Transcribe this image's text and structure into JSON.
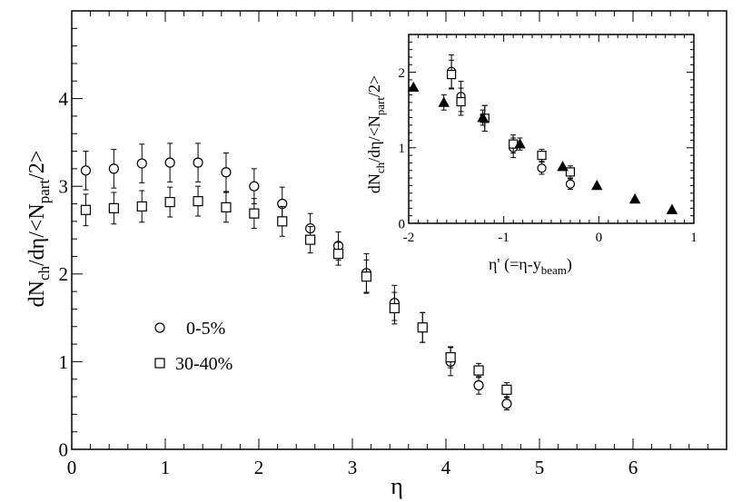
{
  "chart_data": [
    {
      "type": "scatter",
      "title": "",
      "xlabel": "η",
      "ylabel": "dN_ch/dη/<N_part/2>",
      "xlim": [
        0,
        7
      ],
      "ylim": [
        0,
        5
      ],
      "x_ticks": [
        0,
        1,
        2,
        3,
        4,
        5,
        6
      ],
      "y_ticks": [
        0,
        1,
        2,
        3,
        4
      ],
      "grid": false,
      "legend_position": "lower-left",
      "series": [
        {
          "name": "0-5%",
          "marker": "open-circle",
          "x": [
            0.15,
            0.45,
            0.75,
            1.05,
            1.35,
            1.65,
            1.95,
            2.25,
            2.55,
            2.85,
            3.15,
            3.45,
            3.75,
            4.05,
            4.35,
            4.65
          ],
          "y": [
            3.18,
            3.2,
            3.26,
            3.27,
            3.27,
            3.16,
            3.0,
            2.8,
            2.52,
            2.32,
            2.01,
            1.67,
            1.39,
            1.0,
            0.73,
            0.52
          ],
          "err": [
            0.22,
            0.22,
            0.22,
            0.22,
            0.22,
            0.22,
            0.2,
            0.19,
            0.17,
            0.16,
            0.22,
            0.2,
            0.17,
            0.16,
            0.1,
            0.07
          ]
        },
        {
          "name": "30-40%",
          "marker": "open-square",
          "x": [
            0.15,
            0.45,
            0.75,
            1.05,
            1.35,
            1.65,
            1.95,
            2.25,
            2.55,
            2.85,
            3.15,
            3.45,
            3.75,
            4.05,
            4.35,
            4.65
          ],
          "y": [
            2.73,
            2.75,
            2.77,
            2.82,
            2.83,
            2.76,
            2.69,
            2.6,
            2.39,
            2.23,
            1.97,
            1.61,
            1.39,
            1.05,
            0.9,
            0.68
          ],
          "err": [
            0.18,
            0.18,
            0.18,
            0.17,
            0.17,
            0.17,
            0.17,
            0.17,
            0.15,
            0.13,
            0.19,
            0.18,
            0.17,
            0.12,
            0.08,
            0.08
          ]
        }
      ]
    },
    {
      "type": "scatter",
      "title": "",
      "xlabel": "η' (=η-y_beam)",
      "ylabel": "dN_ch/dη/<N_part/2>",
      "xlim": [
        -2,
        1
      ],
      "ylim": [
        0,
        2.5
      ],
      "x_ticks": [
        -2,
        -1,
        0,
        1
      ],
      "y_ticks": [
        0,
        1,
        2
      ],
      "grid": false,
      "series": [
        {
          "name": "0-5%",
          "marker": "open-circle",
          "x": [
            -1.55,
            -1.45,
            -1.2,
            -0.9,
            -0.6,
            -0.3
          ],
          "y": [
            2.01,
            1.68,
            1.39,
            1.0,
            0.73,
            0.52
          ],
          "err": [
            0.22,
            0.2,
            0.17,
            0.13,
            0.08,
            0.07
          ]
        },
        {
          "name": "30-40%",
          "marker": "open-square",
          "x": [
            -1.55,
            -1.45,
            -1.2,
            -0.9,
            -0.6,
            -0.3
          ],
          "y": [
            1.97,
            1.61,
            1.39,
            1.05,
            0.9,
            0.68
          ],
          "err": [
            0.19,
            0.18,
            0.17,
            0.12,
            0.08,
            0.08
          ]
        },
        {
          "name": "",
          "marker": "filled-triangle",
          "x": [
            -1.95,
            -1.63,
            -1.22,
            -0.83,
            -0.38,
            -0.02,
            0.38,
            0.77
          ],
          "y": [
            1.8,
            1.6,
            1.4,
            1.05,
            0.75,
            0.5,
            0.32,
            0.18
          ],
          "err": [
            0.0,
            0.1,
            0.1,
            0.08,
            0.0,
            0.0,
            0.0,
            0.0
          ]
        }
      ]
    }
  ],
  "legend": [
    {
      "label": "0-5%",
      "marker": "open-circle"
    },
    {
      "label": "30-40%",
      "marker": "open-square"
    }
  ]
}
